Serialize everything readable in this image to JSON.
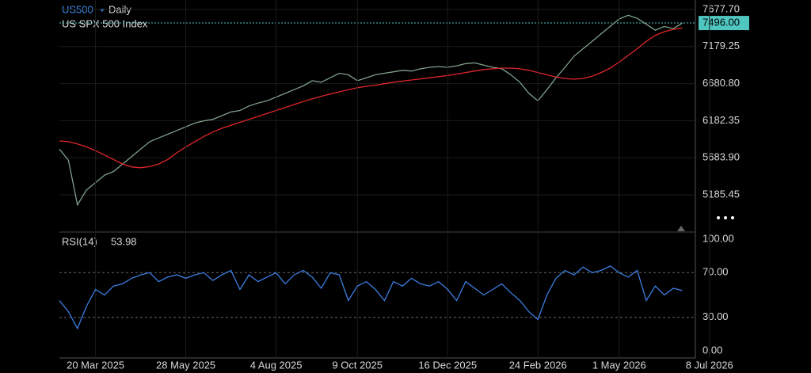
{
  "symbol": "US500",
  "interval": "Daily",
  "instrument_name": "US SPX 500 Index",
  "chart_data": [
    {
      "type": "line",
      "ylim": [
        4684.9,
        7805.5
      ],
      "yticks": [
        {
          "value": 7677.7,
          "label": "7677.70"
        },
        7179.25,
        {
          "value": 6680.8,
          "label": "6680.80"
        },
        6182.35,
        {
          "value": 5683.9,
          "label": "5683.90"
        },
        5185.45
      ],
      "last_price": {
        "value": 7496,
        "label": "7496.00"
      },
      "grid": true,
      "series": [
        {
          "color": "#7fa08a",
          "values": [
            5800,
            5650,
            5050,
            5250,
            5350,
            5450,
            5500,
            5600,
            5700,
            5800,
            5900,
            5950,
            6000,
            6050,
            6100,
            6150,
            6180,
            6200,
            6250,
            6300,
            6320,
            6380,
            6420,
            6450,
            6500,
            6550,
            6600,
            6650,
            6720,
            6700,
            6760,
            6820,
            6800,
            6720,
            6760,
            6800,
            6820,
            6840,
            6860,
            6850,
            6880,
            6900,
            6910,
            6900,
            6920,
            6950,
            6960,
            6930,
            6900,
            6880,
            6800,
            6700,
            6550,
            6450,
            6600,
            6760,
            6900,
            7050,
            7150,
            7250,
            7350,
            7450,
            7550,
            7600,
            7560,
            7480,
            7400,
            7450,
            7420,
            7496,
            null,
            null,
            null
          ]
        },
        {
          "color": "#e0262a",
          "values": [
            5910,
            5900,
            5870,
            5830,
            5780,
            5720,
            5660,
            5600,
            5560,
            5550,
            5565,
            5600,
            5660,
            5750,
            5830,
            5900,
            5970,
            6030,
            6080,
            6120,
            6160,
            6200,
            6240,
            6280,
            6320,
            6360,
            6400,
            6440,
            6475,
            6510,
            6540,
            6570,
            6600,
            6625,
            6645,
            6660,
            6680,
            6700,
            6715,
            6730,
            6745,
            6760,
            6775,
            6790,
            6810,
            6830,
            6850,
            6870,
            6880,
            6890,
            6890,
            6880,
            6860,
            6830,
            6800,
            6770,
            6750,
            6740,
            6750,
            6780,
            6830,
            6890,
            6970,
            7060,
            7150,
            7250,
            7330,
            7380,
            7410,
            7430,
            null,
            null,
            null
          ]
        }
      ]
    },
    {
      "type": "line",
      "ylim": [
        -6.4,
        106.4
      ],
      "yticks": [
        {
          "value": 100,
          "label": "100.00"
        },
        {
          "value": 70,
          "label": "70.00"
        },
        {
          "value": 30,
          "label": "30.00"
        },
        {
          "value": 0,
          "label": "0.00"
        }
      ],
      "categories": [
        null,
        null,
        null,
        null,
        "20 Mar 2025",
        null,
        null,
        null,
        null,
        null,
        null,
        null,
        null,
        null,
        "28 May 2025",
        null,
        null,
        null,
        null,
        null,
        null,
        null,
        null,
        null,
        "4 Aug 2025",
        null,
        null,
        null,
        null,
        null,
        null,
        null,
        null,
        "9 Oct 2025",
        null,
        null,
        null,
        null,
        null,
        null,
        null,
        null,
        null,
        "16 Dec 2025",
        null,
        null,
        null,
        null,
        null,
        null,
        null,
        null,
        null,
        "24 Feb 2026",
        null,
        null,
        null,
        null,
        null,
        null,
        null,
        null,
        "1 May 2026",
        null,
        null,
        null,
        null,
        null,
        null,
        null,
        null,
        null,
        "8 Jul 2026"
      ],
      "series": [
        {
          "name": "RSI(14)",
          "color": "#3d7de0",
          "values": [
            45,
            35,
            20,
            40,
            55,
            50,
            58,
            60,
            65,
            68,
            70,
            62,
            66,
            68,
            65,
            68,
            70,
            63,
            68,
            72,
            55,
            68,
            62,
            66,
            70,
            60,
            68,
            72,
            66,
            56,
            70,
            68,
            45,
            58,
            62,
            55,
            45,
            62,
            58,
            65,
            60,
            58,
            62,
            55,
            45,
            62,
            56,
            50,
            55,
            60,
            52,
            45,
            35,
            28,
            50,
            65,
            72,
            68,
            75,
            70,
            72,
            76,
            70,
            66,
            72,
            45,
            58,
            50,
            56,
            53.98,
            null,
            null,
            null
          ]
        }
      ]
    }
  ]
}
